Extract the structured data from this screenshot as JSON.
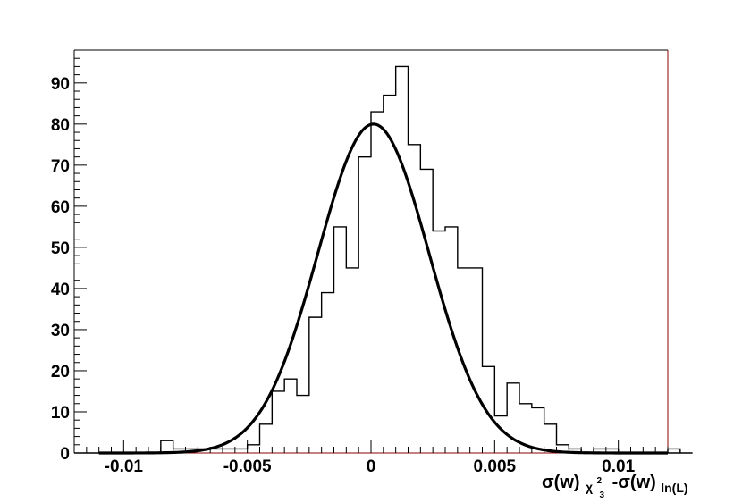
{
  "chart_data": {
    "type": "bar",
    "title": "",
    "xlabel": "σ(w)_{χ²_3} - σ(w)_{ln(L)}",
    "xlabel_parts": {
      "sigma_w_1": "σ(w)",
      "sub_1_base": "χ",
      "sub_1_sup": "2",
      "sub_1_sub": "3",
      "minus_sigma_w_2": "-σ(w)",
      "sub_2": "ln(L)"
    },
    "ylabel": "",
    "xlim": [
      -0.012,
      0.012
    ],
    "ylim": [
      0,
      98
    ],
    "x_ticks": [
      -0.01,
      -0.005,
      0,
      0.005,
      0.01
    ],
    "x_tick_labels": [
      "-0.01",
      "-0.005",
      "0",
      "0.005",
      "0.01"
    ],
    "y_ticks": [
      0,
      10,
      20,
      30,
      40,
      50,
      60,
      70,
      80,
      90
    ],
    "y_tick_labels": [
      "0",
      "10",
      "20",
      "30",
      "40",
      "50",
      "60",
      "70",
      "80",
      "90"
    ],
    "grid": false,
    "histogram": {
      "bin_width": 0.0005,
      "bin_edges_start": -0.01,
      "counts": [
        0,
        0,
        0,
        3,
        1,
        1,
        1,
        1,
        1,
        1,
        2,
        7,
        15,
        18,
        14,
        33,
        39,
        55,
        45,
        72,
        83,
        87,
        94,
        75,
        69,
        54,
        55,
        45,
        45,
        21,
        9,
        17,
        12,
        11,
        7,
        2,
        1,
        0,
        1,
        1,
        0,
        0,
        0,
        0,
        1,
        0
      ]
    },
    "fit": {
      "type": "gaussian",
      "amplitude": 80,
      "mean": 0.0001,
      "sigma": 0.00225
    },
    "colors": {
      "histogram": "#000000",
      "fit": "#000000",
      "frame_right": "#8b0000",
      "baseline": "#8b0000"
    }
  }
}
